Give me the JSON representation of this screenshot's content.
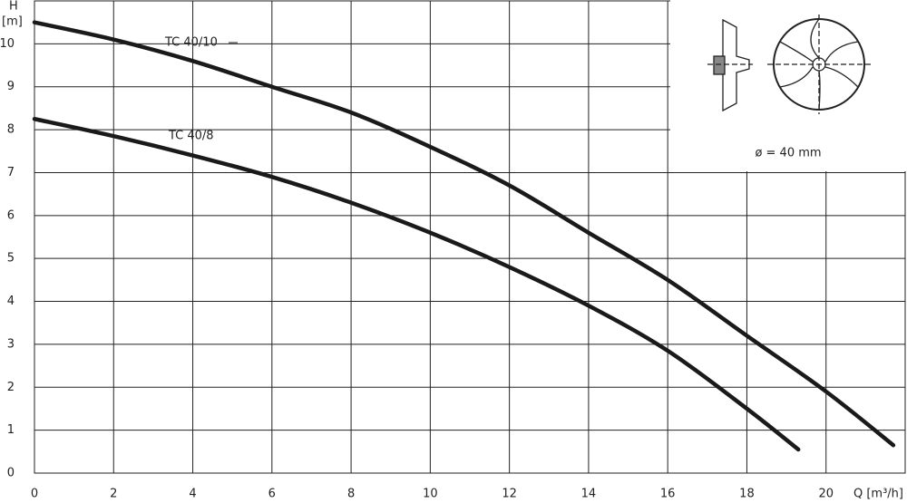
{
  "chart_data": {
    "type": "line",
    "y_label_symbol": "H",
    "y_label_unit": "[m]",
    "x_label": "Q [m³/h]",
    "annotation": "ø = 40 mm",
    "xlim": [
      0,
      22
    ],
    "ylim": [
      0,
      11
    ],
    "xticks": [
      0,
      2,
      4,
      6,
      8,
      10,
      12,
      14,
      16,
      18,
      20
    ],
    "yticks": [
      0,
      1,
      2,
      3,
      4,
      5,
      6,
      7,
      8,
      9,
      10
    ],
    "grid": true,
    "series": [
      {
        "name": "TC 40/10",
        "color": "#1a1a1a",
        "x": [
          0,
          2,
          4,
          6,
          8,
          10,
          12,
          14,
          16,
          18,
          20,
          21.7
        ],
        "values": [
          10.5,
          10.1,
          9.6,
          9.0,
          8.4,
          7.6,
          6.7,
          5.6,
          4.5,
          3.2,
          1.9,
          0.65
        ]
      },
      {
        "name": "TC 40/8",
        "color": "#1a1a1a",
        "x": [
          0,
          2,
          4,
          6,
          8,
          10,
          12,
          14,
          16,
          18,
          19.3
        ],
        "values": [
          8.25,
          7.85,
          7.4,
          6.9,
          6.3,
          5.6,
          4.8,
          3.9,
          2.85,
          1.5,
          0.55
        ]
      }
    ]
  }
}
